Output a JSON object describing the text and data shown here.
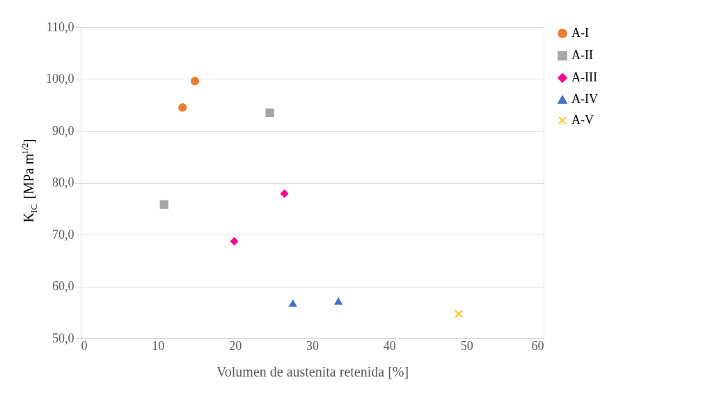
{
  "chart_data": {
    "type": "scatter",
    "xlabel": "Volumen de austenita retenida [%]",
    "ylabel": "K$_{IC}$ [MPa m$^{1/2}$]",
    "xlim": [
      0,
      60
    ],
    "xticks": [
      0,
      10,
      20,
      30,
      40,
      50,
      60
    ],
    "ylim": [
      50,
      110
    ],
    "yticks": [
      {
        "value": 50,
        "label": "50,0"
      },
      {
        "value": 60,
        "label": "60,0"
      },
      {
        "value": 70,
        "label": "70,0"
      },
      {
        "value": 80,
        "label": "80,0"
      },
      {
        "value": 90,
        "label": "90,0"
      },
      {
        "value": 100,
        "label": "100,0"
      },
      {
        "value": 110,
        "label": "110,0"
      }
    ],
    "grid": "y",
    "legend": "right",
    "series": [
      {
        "name": "A-I",
        "color": "#ed7d31",
        "marker": "circle",
        "x": [
          13.2,
          14.8
        ],
        "values": [
          94.5,
          99.6
        ]
      },
      {
        "name": "A-II",
        "color": "#a5a5a5",
        "marker": "square",
        "x": [
          10.8,
          24.5
        ],
        "values": [
          75.8,
          93.5
        ]
      },
      {
        "name": "A-III",
        "color": "#ff0090",
        "marker": "diamond",
        "x": [
          19.9,
          26.4
        ],
        "values": [
          68.7,
          77.9
        ]
      },
      {
        "name": "A-IV",
        "color": "#4472c4",
        "marker": "triangle",
        "x": [
          27.5,
          33.4
        ],
        "values": [
          56.8,
          57.2
        ]
      },
      {
        "name": "A-V",
        "color": "#ffc000",
        "marker": "cross",
        "x": [
          49.0
        ],
        "values": [
          54.7
        ]
      }
    ]
  }
}
